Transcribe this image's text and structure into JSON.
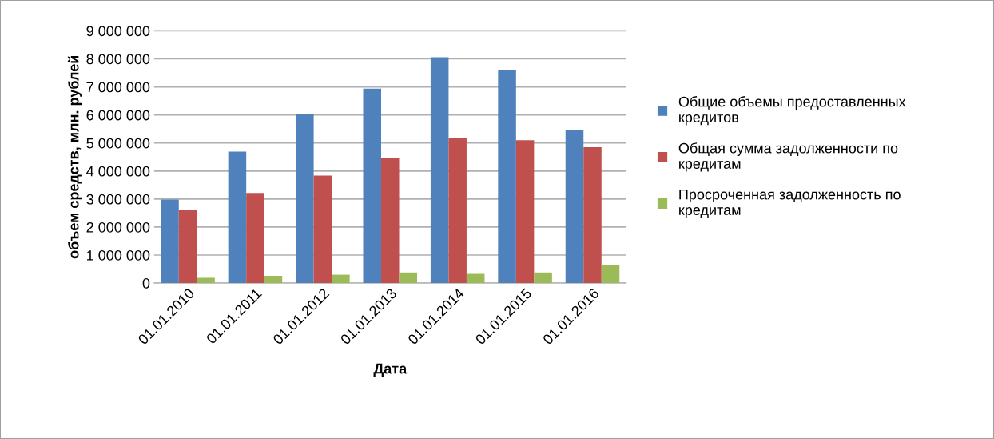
{
  "chart_data": {
    "type": "bar",
    "xlabel": "Дата",
    "ylabel": "объем средств, млн. рублей",
    "categories": [
      "01.01.2010",
      "01.01.2011",
      "01.01.2012",
      "01.01.2013",
      "01.01.2014",
      "01.01.2015",
      "01.01.2016"
    ],
    "series": [
      {
        "name": "Общие объемы предоставленных кредитов",
        "color": "#4f81bd",
        "values": [
          2980000,
          4690000,
          6050000,
          6940000,
          8060000,
          7600000,
          5460000
        ]
      },
      {
        "name": "Общая сумма задолженности по кредитам",
        "color": "#c0504d",
        "values": [
          2620000,
          3220000,
          3840000,
          4470000,
          5170000,
          5100000,
          4850000
        ]
      },
      {
        "name": "Просроченная задолженность по кредитам",
        "color": "#9bbb59",
        "values": [
          190000,
          260000,
          300000,
          380000,
          330000,
          380000,
          630000
        ]
      }
    ],
    "ylim": [
      0,
      9000000
    ],
    "yticks": [
      {
        "value": 0,
        "label": "0"
      },
      {
        "value": 1000000,
        "label": "1 000 000"
      },
      {
        "value": 2000000,
        "label": "2 000 000"
      },
      {
        "value": 3000000,
        "label": "3 000 000"
      },
      {
        "value": 4000000,
        "label": "4 000 000"
      },
      {
        "value": 5000000,
        "label": "5 000 000"
      },
      {
        "value": 6000000,
        "label": "6 000 000"
      },
      {
        "value": 7000000,
        "label": "7 000 000"
      },
      {
        "value": 8000000,
        "label": "8 000 000"
      },
      {
        "value": 9000000,
        "label": "9 000 000"
      }
    ],
    "grid": "y",
    "legend": "right"
  }
}
